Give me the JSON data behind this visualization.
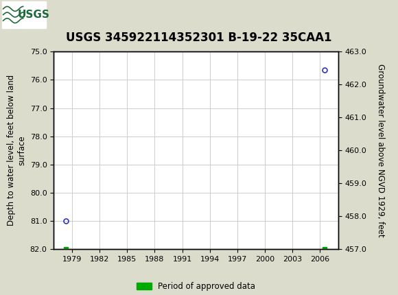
{
  "title": "USGS 345922114352301 B-19-22 35CAA1",
  "header_color": "#1b6b3a",
  "background_color": "#dcdccc",
  "plot_bg_color": "#ffffff",
  "left_ylabel_line1": "Depth to water level, feet below land",
  "left_ylabel_line2": "surface",
  "right_ylabel": "Groundwater level above NGVD 1929, feet",
  "ylim_left": [
    75.0,
    82.0
  ],
  "ylim_right": [
    463.0,
    457.0
  ],
  "xlim": [
    1977.0,
    2008.0
  ],
  "xticks": [
    1979,
    1982,
    1985,
    1988,
    1991,
    1994,
    1997,
    2000,
    2003,
    2006
  ],
  "yticks_left": [
    75.0,
    76.0,
    77.0,
    78.0,
    79.0,
    80.0,
    81.0,
    82.0
  ],
  "yticks_right": [
    463.0,
    462.0,
    461.0,
    460.0,
    459.0,
    458.0,
    457.0
  ],
  "data_points": [
    {
      "x": 1978.3,
      "y_left": 81.0,
      "color": "#3333bb"
    },
    {
      "x": 2006.5,
      "y_left": 75.65,
      "color": "#3333bb"
    }
  ],
  "approved_markers": [
    {
      "x": 1978.3,
      "y_left": 82.0
    },
    {
      "x": 2006.5,
      "y_left": 82.0
    }
  ],
  "legend_label": "Period of approved data",
  "legend_color": "#00aa00",
  "title_fontsize": 12,
  "axis_label_fontsize": 8.5,
  "tick_fontsize": 8,
  "grid_color": "#cccccc",
  "grid_linewidth": 0.7
}
